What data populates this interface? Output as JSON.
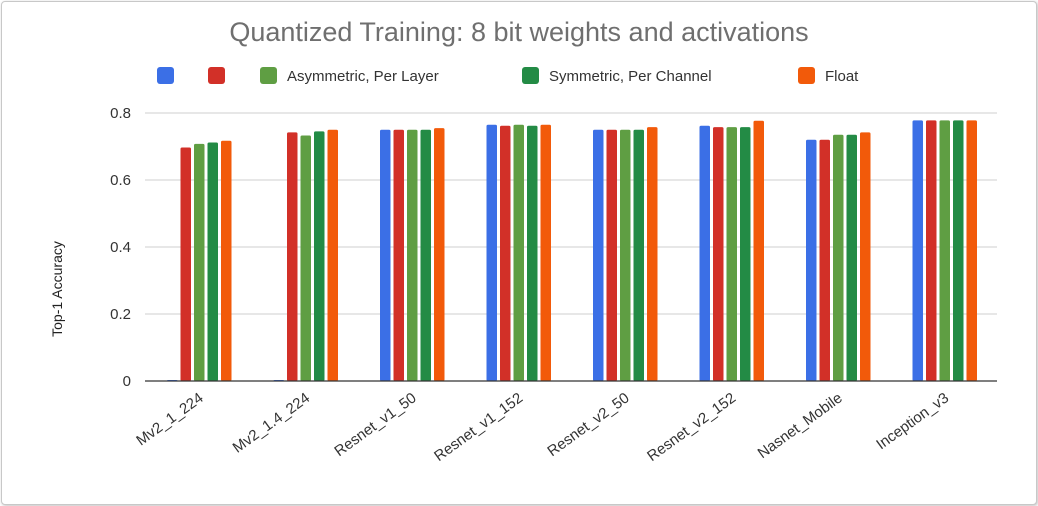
{
  "chart_data": {
    "type": "bar",
    "title": "Quantized Training: 8 bit weights and activations",
    "xlabel": "",
    "ylabel": "Top-1 Accuracy",
    "ylim": [
      0,
      0.8
    ],
    "yticks": [
      0,
      0.2,
      0.4,
      0.6,
      0.8
    ],
    "ytick_labels": [
      "0",
      "0.2",
      "0.4",
      "0.6",
      "0.8"
    ],
    "grid": true,
    "legend_position": "top",
    "categories": [
      "Mv2_1_224",
      "Mv2_1.4_224",
      "Resnet_v1_50",
      "Resnet_v1_152",
      "Resnet_v2_50",
      "Resnet_v2_152",
      "Nasnet_Mobile",
      "Inception_v3"
    ],
    "series": [
      {
        "name": "",
        "color": "#3b6fe6",
        "values": [
          0.0,
          0.0,
          0.75,
          0.765,
          0.75,
          0.762,
          0.72,
          0.778
        ]
      },
      {
        "name": "",
        "color": "#d23028",
        "values": [
          0.697,
          0.742,
          0.75,
          0.762,
          0.75,
          0.758,
          0.72,
          0.778
        ]
      },
      {
        "name": "Asymmetric, Per Layer",
        "color": "#5f9e43",
        "values": [
          0.708,
          0.733,
          0.75,
          0.765,
          0.75,
          0.758,
          0.735,
          0.778
        ]
      },
      {
        "name": "Symmetric, Per Channel",
        "color": "#238b45",
        "values": [
          0.712,
          0.745,
          0.75,
          0.762,
          0.75,
          0.758,
          0.735,
          0.778
        ]
      },
      {
        "name": "Float",
        "color": "#f25a0a",
        "values": [
          0.717,
          0.75,
          0.755,
          0.765,
          0.758,
          0.777,
          0.742,
          0.778
        ]
      }
    ]
  }
}
